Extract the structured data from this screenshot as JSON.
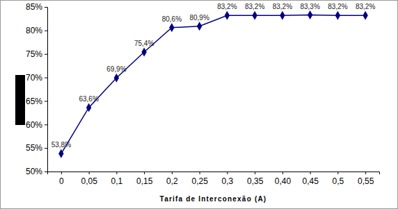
{
  "chart_data": {
    "type": "line",
    "xlabel": "Tarifa de Interconexão (A)",
    "categories": [
      "0",
      "0,05",
      "0,1",
      "0,15",
      "0,2",
      "0,25",
      "0,3",
      "0,35",
      "0,40",
      "0,45",
      "0,5",
      "0,55"
    ],
    "values": [
      53.8,
      63.6,
      69.9,
      75.4,
      80.6,
      80.9,
      83.2,
      83.2,
      83.2,
      83.3,
      83.2,
      83.2
    ],
    "value_labels": [
      "53,8%",
      "63,6%",
      "69,9%",
      "75,4%",
      "80,6%",
      "80,9%",
      "83,2%",
      "83,2%",
      "83,2%",
      "83,3%",
      "83,2%",
      "83,2%"
    ],
    "color": "#000080",
    "marker": "diamond",
    "line_style": "solid",
    "data_labels": true,
    "grid": false,
    "ylim": [
      50,
      85
    ],
    "yticks": [
      {
        "value": 50,
        "label": "50%"
      },
      {
        "value": 55,
        "label": "55%"
      },
      {
        "value": 60,
        "label": "60%"
      },
      {
        "value": 65,
        "label": "65%"
      },
      {
        "value": 70,
        "label": "70%"
      },
      {
        "value": 75,
        "label": "75%"
      },
      {
        "value": 80,
        "label": "80%"
      },
      {
        "value": 85,
        "label": "85%"
      }
    ]
  }
}
